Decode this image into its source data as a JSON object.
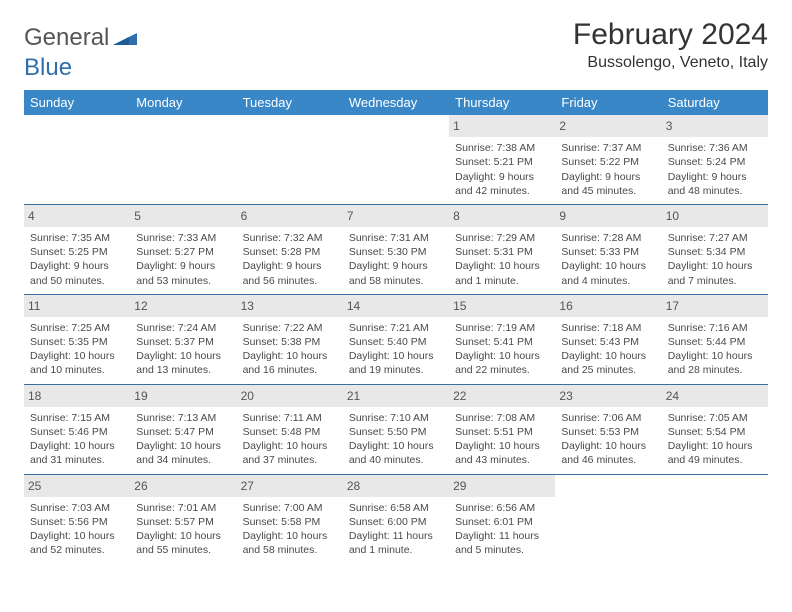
{
  "brand": {
    "word1": "General",
    "word2": "Blue"
  },
  "title": "February 2024",
  "location": "Bussolengo, Veneto, Italy",
  "colors": {
    "header_bg": "#3a87c8",
    "header_text": "#ffffff",
    "daynum_bg": "#e8e8e8",
    "cell_border": "#3a6fa0",
    "body_text": "#4a4a4a",
    "logo_gray": "#555555",
    "logo_blue": "#2f6fae"
  },
  "day_headers": [
    "Sunday",
    "Monday",
    "Tuesday",
    "Wednesday",
    "Thursday",
    "Friday",
    "Saturday"
  ],
  "weeks": [
    [
      {
        "n": "",
        "sr": "",
        "ss": "",
        "dl": ""
      },
      {
        "n": "",
        "sr": "",
        "ss": "",
        "dl": ""
      },
      {
        "n": "",
        "sr": "",
        "ss": "",
        "dl": ""
      },
      {
        "n": "",
        "sr": "",
        "ss": "",
        "dl": ""
      },
      {
        "n": "1",
        "sr": "Sunrise: 7:38 AM",
        "ss": "Sunset: 5:21 PM",
        "dl": "Daylight: 9 hours and 42 minutes."
      },
      {
        "n": "2",
        "sr": "Sunrise: 7:37 AM",
        "ss": "Sunset: 5:22 PM",
        "dl": "Daylight: 9 hours and 45 minutes."
      },
      {
        "n": "3",
        "sr": "Sunrise: 7:36 AM",
        "ss": "Sunset: 5:24 PM",
        "dl": "Daylight: 9 hours and 48 minutes."
      }
    ],
    [
      {
        "n": "4",
        "sr": "Sunrise: 7:35 AM",
        "ss": "Sunset: 5:25 PM",
        "dl": "Daylight: 9 hours and 50 minutes."
      },
      {
        "n": "5",
        "sr": "Sunrise: 7:33 AM",
        "ss": "Sunset: 5:27 PM",
        "dl": "Daylight: 9 hours and 53 minutes."
      },
      {
        "n": "6",
        "sr": "Sunrise: 7:32 AM",
        "ss": "Sunset: 5:28 PM",
        "dl": "Daylight: 9 hours and 56 minutes."
      },
      {
        "n": "7",
        "sr": "Sunrise: 7:31 AM",
        "ss": "Sunset: 5:30 PM",
        "dl": "Daylight: 9 hours and 58 minutes."
      },
      {
        "n": "8",
        "sr": "Sunrise: 7:29 AM",
        "ss": "Sunset: 5:31 PM",
        "dl": "Daylight: 10 hours and 1 minute."
      },
      {
        "n": "9",
        "sr": "Sunrise: 7:28 AM",
        "ss": "Sunset: 5:33 PM",
        "dl": "Daylight: 10 hours and 4 minutes."
      },
      {
        "n": "10",
        "sr": "Sunrise: 7:27 AM",
        "ss": "Sunset: 5:34 PM",
        "dl": "Daylight: 10 hours and 7 minutes."
      }
    ],
    [
      {
        "n": "11",
        "sr": "Sunrise: 7:25 AM",
        "ss": "Sunset: 5:35 PM",
        "dl": "Daylight: 10 hours and 10 minutes."
      },
      {
        "n": "12",
        "sr": "Sunrise: 7:24 AM",
        "ss": "Sunset: 5:37 PM",
        "dl": "Daylight: 10 hours and 13 minutes."
      },
      {
        "n": "13",
        "sr": "Sunrise: 7:22 AM",
        "ss": "Sunset: 5:38 PM",
        "dl": "Daylight: 10 hours and 16 minutes."
      },
      {
        "n": "14",
        "sr": "Sunrise: 7:21 AM",
        "ss": "Sunset: 5:40 PM",
        "dl": "Daylight: 10 hours and 19 minutes."
      },
      {
        "n": "15",
        "sr": "Sunrise: 7:19 AM",
        "ss": "Sunset: 5:41 PM",
        "dl": "Daylight: 10 hours and 22 minutes."
      },
      {
        "n": "16",
        "sr": "Sunrise: 7:18 AM",
        "ss": "Sunset: 5:43 PM",
        "dl": "Daylight: 10 hours and 25 minutes."
      },
      {
        "n": "17",
        "sr": "Sunrise: 7:16 AM",
        "ss": "Sunset: 5:44 PM",
        "dl": "Daylight: 10 hours and 28 minutes."
      }
    ],
    [
      {
        "n": "18",
        "sr": "Sunrise: 7:15 AM",
        "ss": "Sunset: 5:46 PM",
        "dl": "Daylight: 10 hours and 31 minutes."
      },
      {
        "n": "19",
        "sr": "Sunrise: 7:13 AM",
        "ss": "Sunset: 5:47 PM",
        "dl": "Daylight: 10 hours and 34 minutes."
      },
      {
        "n": "20",
        "sr": "Sunrise: 7:11 AM",
        "ss": "Sunset: 5:48 PM",
        "dl": "Daylight: 10 hours and 37 minutes."
      },
      {
        "n": "21",
        "sr": "Sunrise: 7:10 AM",
        "ss": "Sunset: 5:50 PM",
        "dl": "Daylight: 10 hours and 40 minutes."
      },
      {
        "n": "22",
        "sr": "Sunrise: 7:08 AM",
        "ss": "Sunset: 5:51 PM",
        "dl": "Daylight: 10 hours and 43 minutes."
      },
      {
        "n": "23",
        "sr": "Sunrise: 7:06 AM",
        "ss": "Sunset: 5:53 PM",
        "dl": "Daylight: 10 hours and 46 minutes."
      },
      {
        "n": "24",
        "sr": "Sunrise: 7:05 AM",
        "ss": "Sunset: 5:54 PM",
        "dl": "Daylight: 10 hours and 49 minutes."
      }
    ],
    [
      {
        "n": "25",
        "sr": "Sunrise: 7:03 AM",
        "ss": "Sunset: 5:56 PM",
        "dl": "Daylight: 10 hours and 52 minutes."
      },
      {
        "n": "26",
        "sr": "Sunrise: 7:01 AM",
        "ss": "Sunset: 5:57 PM",
        "dl": "Daylight: 10 hours and 55 minutes."
      },
      {
        "n": "27",
        "sr": "Sunrise: 7:00 AM",
        "ss": "Sunset: 5:58 PM",
        "dl": "Daylight: 10 hours and 58 minutes."
      },
      {
        "n": "28",
        "sr": "Sunrise: 6:58 AM",
        "ss": "Sunset: 6:00 PM",
        "dl": "Daylight: 11 hours and 1 minute."
      },
      {
        "n": "29",
        "sr": "Sunrise: 6:56 AM",
        "ss": "Sunset: 6:01 PM",
        "dl": "Daylight: 11 hours and 5 minutes."
      },
      {
        "n": "",
        "sr": "",
        "ss": "",
        "dl": ""
      },
      {
        "n": "",
        "sr": "",
        "ss": "",
        "dl": ""
      }
    ]
  ]
}
